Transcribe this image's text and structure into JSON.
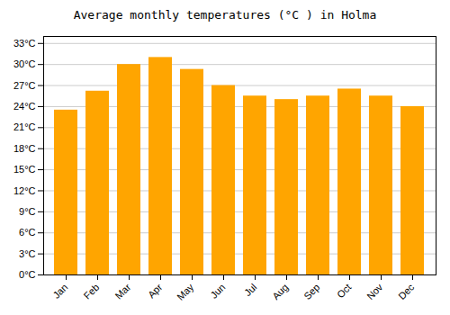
{
  "chart_data": {
    "type": "bar",
    "title": "Average monthly temperatures (°C ) in Holma",
    "categories": [
      "Jan",
      "Feb",
      "Mar",
      "Apr",
      "May",
      "Jun",
      "Jul",
      "Aug",
      "Sep",
      "Oct",
      "Nov",
      "Dec"
    ],
    "values": [
      23.5,
      26.2,
      30.0,
      31.0,
      29.3,
      27.0,
      25.5,
      25.0,
      25.5,
      26.5,
      25.5,
      24.0
    ],
    "color": "#FFA500",
    "ylim": [
      0,
      34
    ],
    "yticks": [
      {
        "value": 0,
        "label": "0°C"
      },
      {
        "value": 3,
        "label": "3°C"
      },
      {
        "value": 6,
        "label": "6°C"
      },
      {
        "value": 9,
        "label": "9°C"
      },
      {
        "value": 12,
        "label": "12°C"
      },
      {
        "value": 15,
        "label": "15°C"
      },
      {
        "value": 18,
        "label": "18°C"
      },
      {
        "value": 21,
        "label": "21°C"
      },
      {
        "value": 24,
        "label": "24°C"
      },
      {
        "value": 27,
        "label": "27°C"
      },
      {
        "value": 30,
        "label": "30°C"
      },
      {
        "value": 33,
        "label": "33°C"
      }
    ],
    "grid": true
  }
}
